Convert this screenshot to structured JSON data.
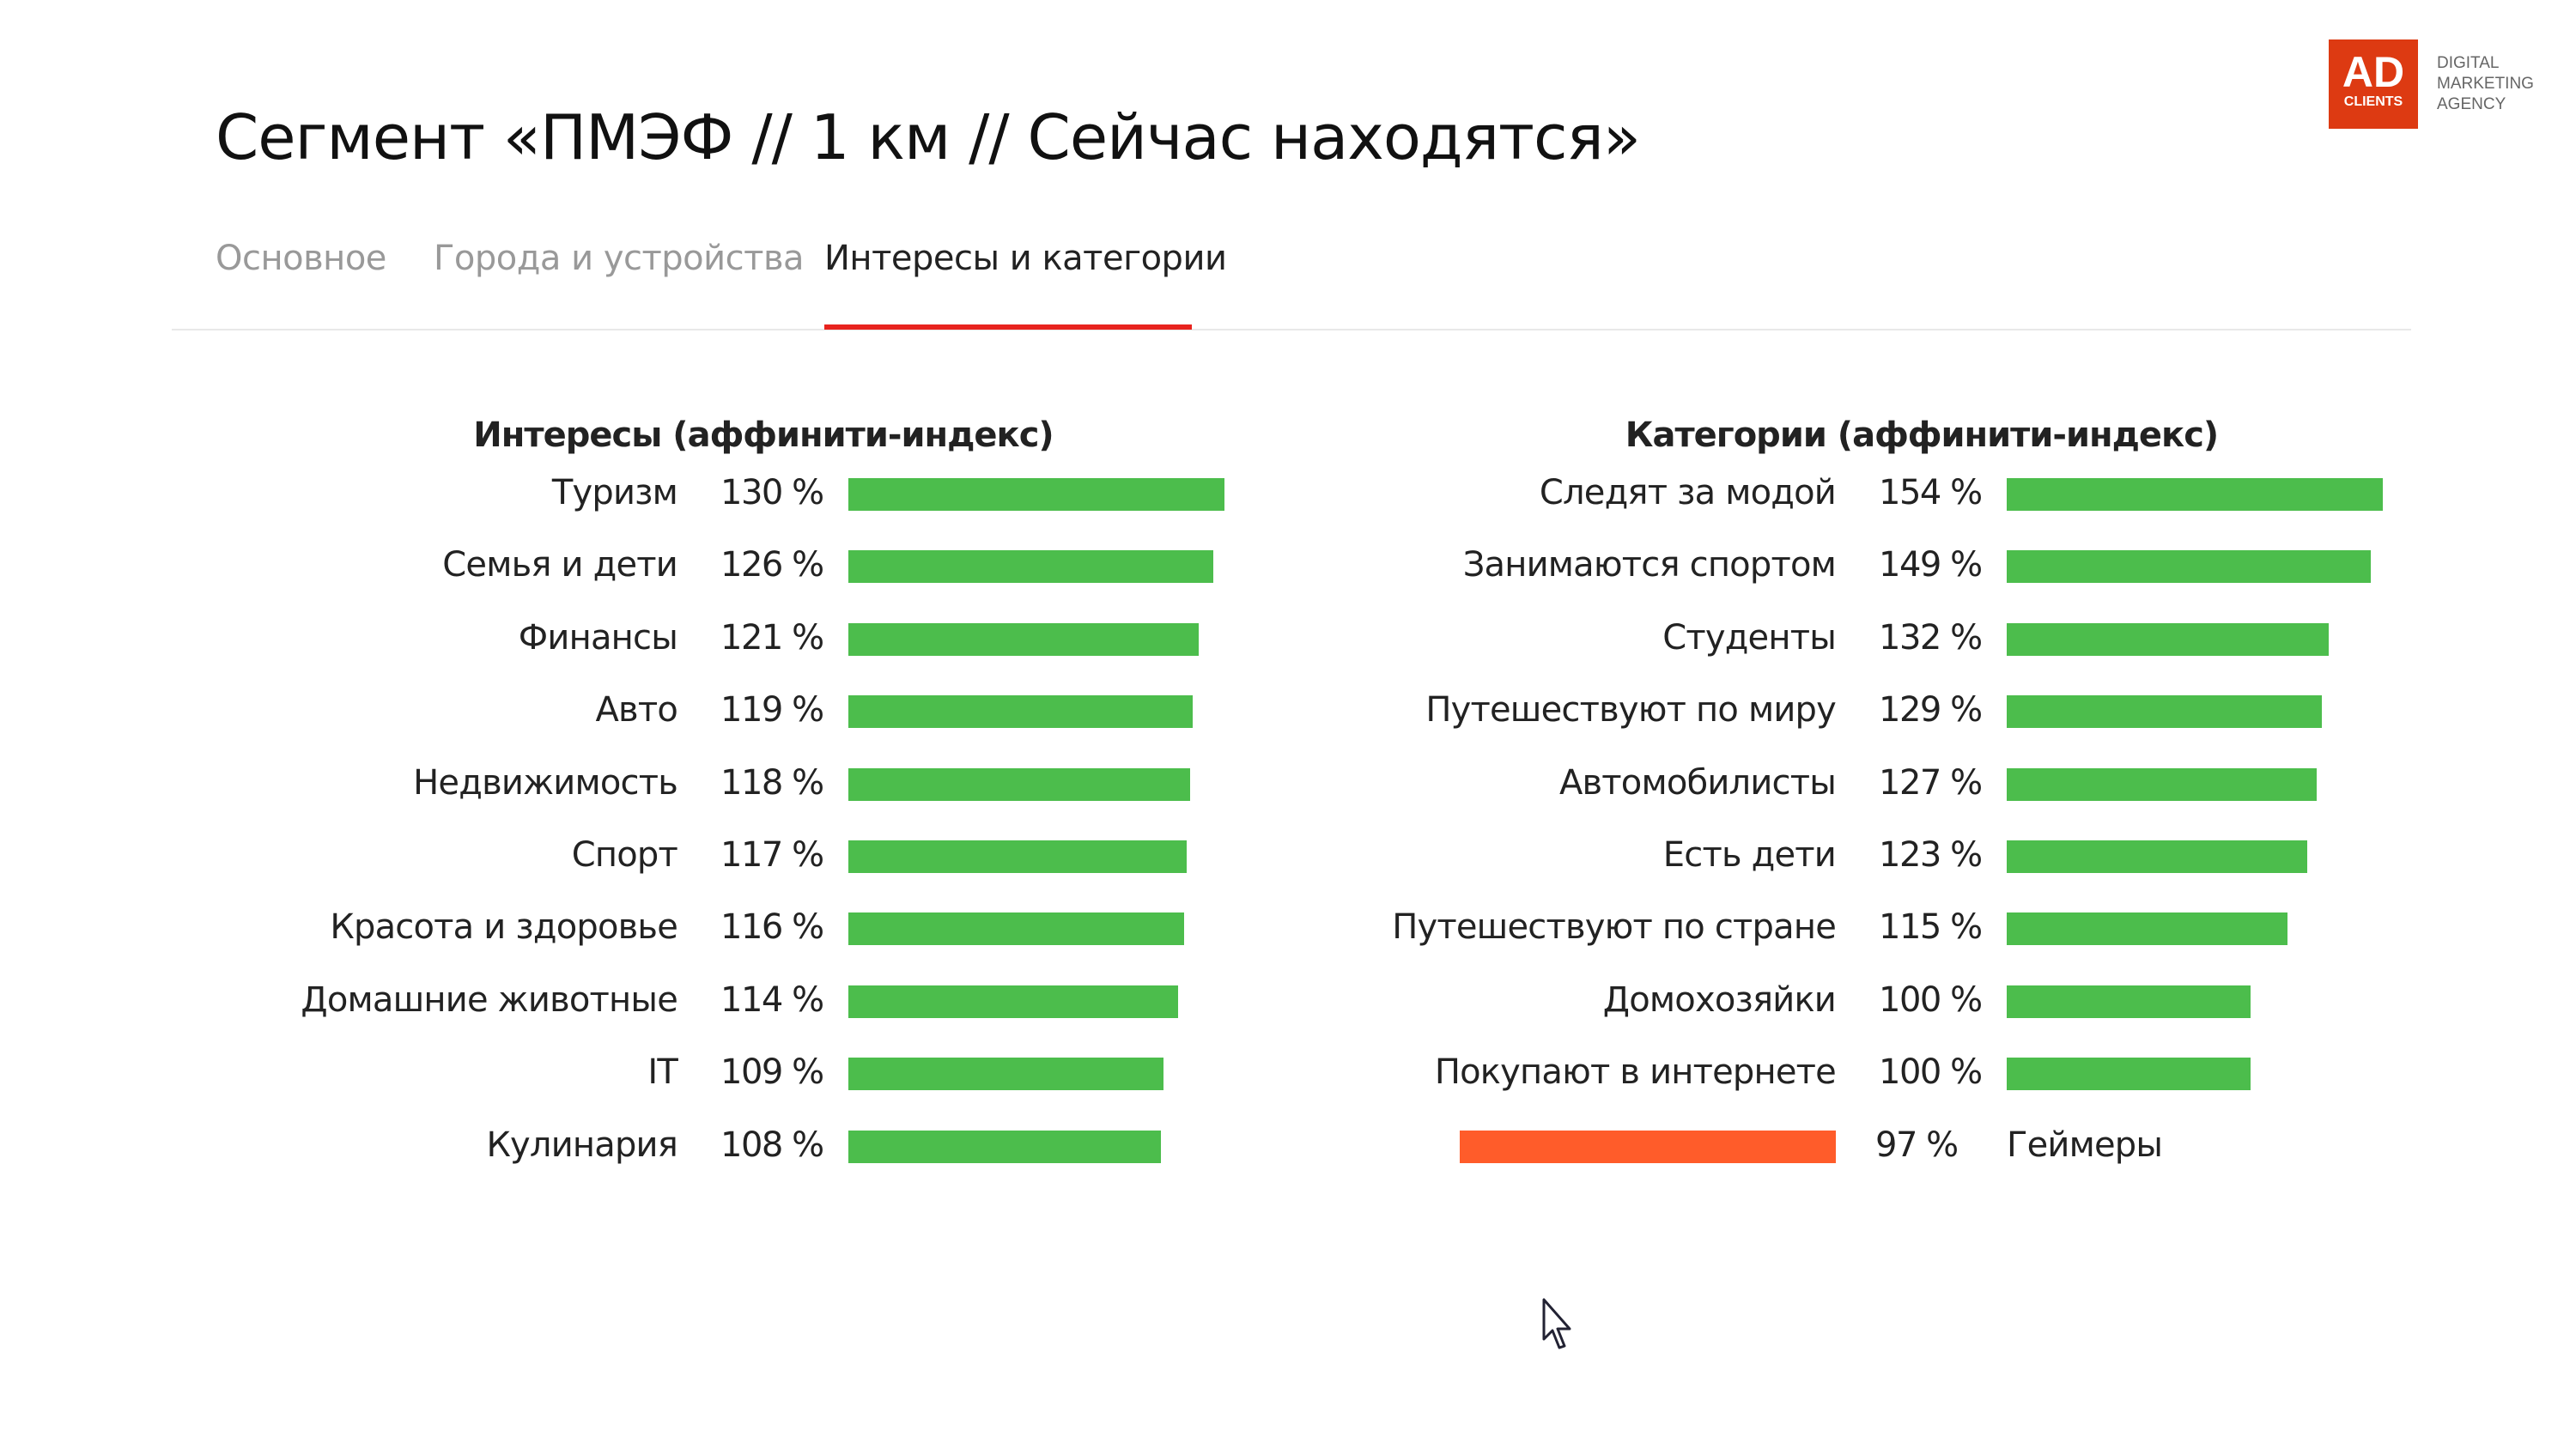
{
  "header": {
    "title": "Сегмент «ПМЭФ // 1 км // Сейчас находятся»"
  },
  "tabs": [
    {
      "label": "Основное",
      "active": false
    },
    {
      "label": "Города и устройства",
      "active": false
    },
    {
      "label": "Интересы и категории",
      "active": true
    }
  ],
  "logo": {
    "text": "AD",
    "subtext": "CLIENTS",
    "tagline": [
      "DIGITAL",
      "MARKETING",
      "AGENCY"
    ],
    "color": "#dd3a12"
  },
  "colors": {
    "positive": "#4cbd4c",
    "negative": "#ff5c2a",
    "tab_underline": "#e8231e"
  },
  "chart_data": [
    {
      "type": "bar",
      "title": "Интересы (аффинити-индекс)",
      "unit": "%",
      "categories": [
        "Туризм",
        "Семья и дети",
        "Финансы",
        "Авто",
        "Недвижимость",
        "Спорт",
        "Красота и здоровье",
        "Домашние животные",
        "IT",
        "Кулинария"
      ],
      "values": [
        130,
        126,
        121,
        119,
        118,
        117,
        116,
        114,
        109,
        108
      ],
      "labels": [
        "130 %",
        "126 %",
        "121 %",
        "119 %",
        "118 %",
        "117 %",
        "116 %",
        "114 %",
        "109 %",
        "108 %"
      ]
    },
    {
      "type": "bar",
      "title": "Категории (аффинити-индекс)",
      "unit": "%",
      "categories": [
        "Следят за модой",
        "Занимаются спортом",
        "Студенты",
        "Путешествуют по миру",
        "Автомобилисты",
        "Есть дети",
        "Путешествуют по стране",
        "Домохозяйки",
        "Покупают в интернете",
        "Геймеры"
      ],
      "values": [
        154,
        149,
        132,
        129,
        127,
        123,
        115,
        100,
        100,
        97
      ],
      "labels": [
        "154 %",
        "149 %",
        "132 %",
        "129 %",
        "127 %",
        "123 %",
        "115 %",
        "100 %",
        "100 %",
        "97 %"
      ]
    }
  ]
}
